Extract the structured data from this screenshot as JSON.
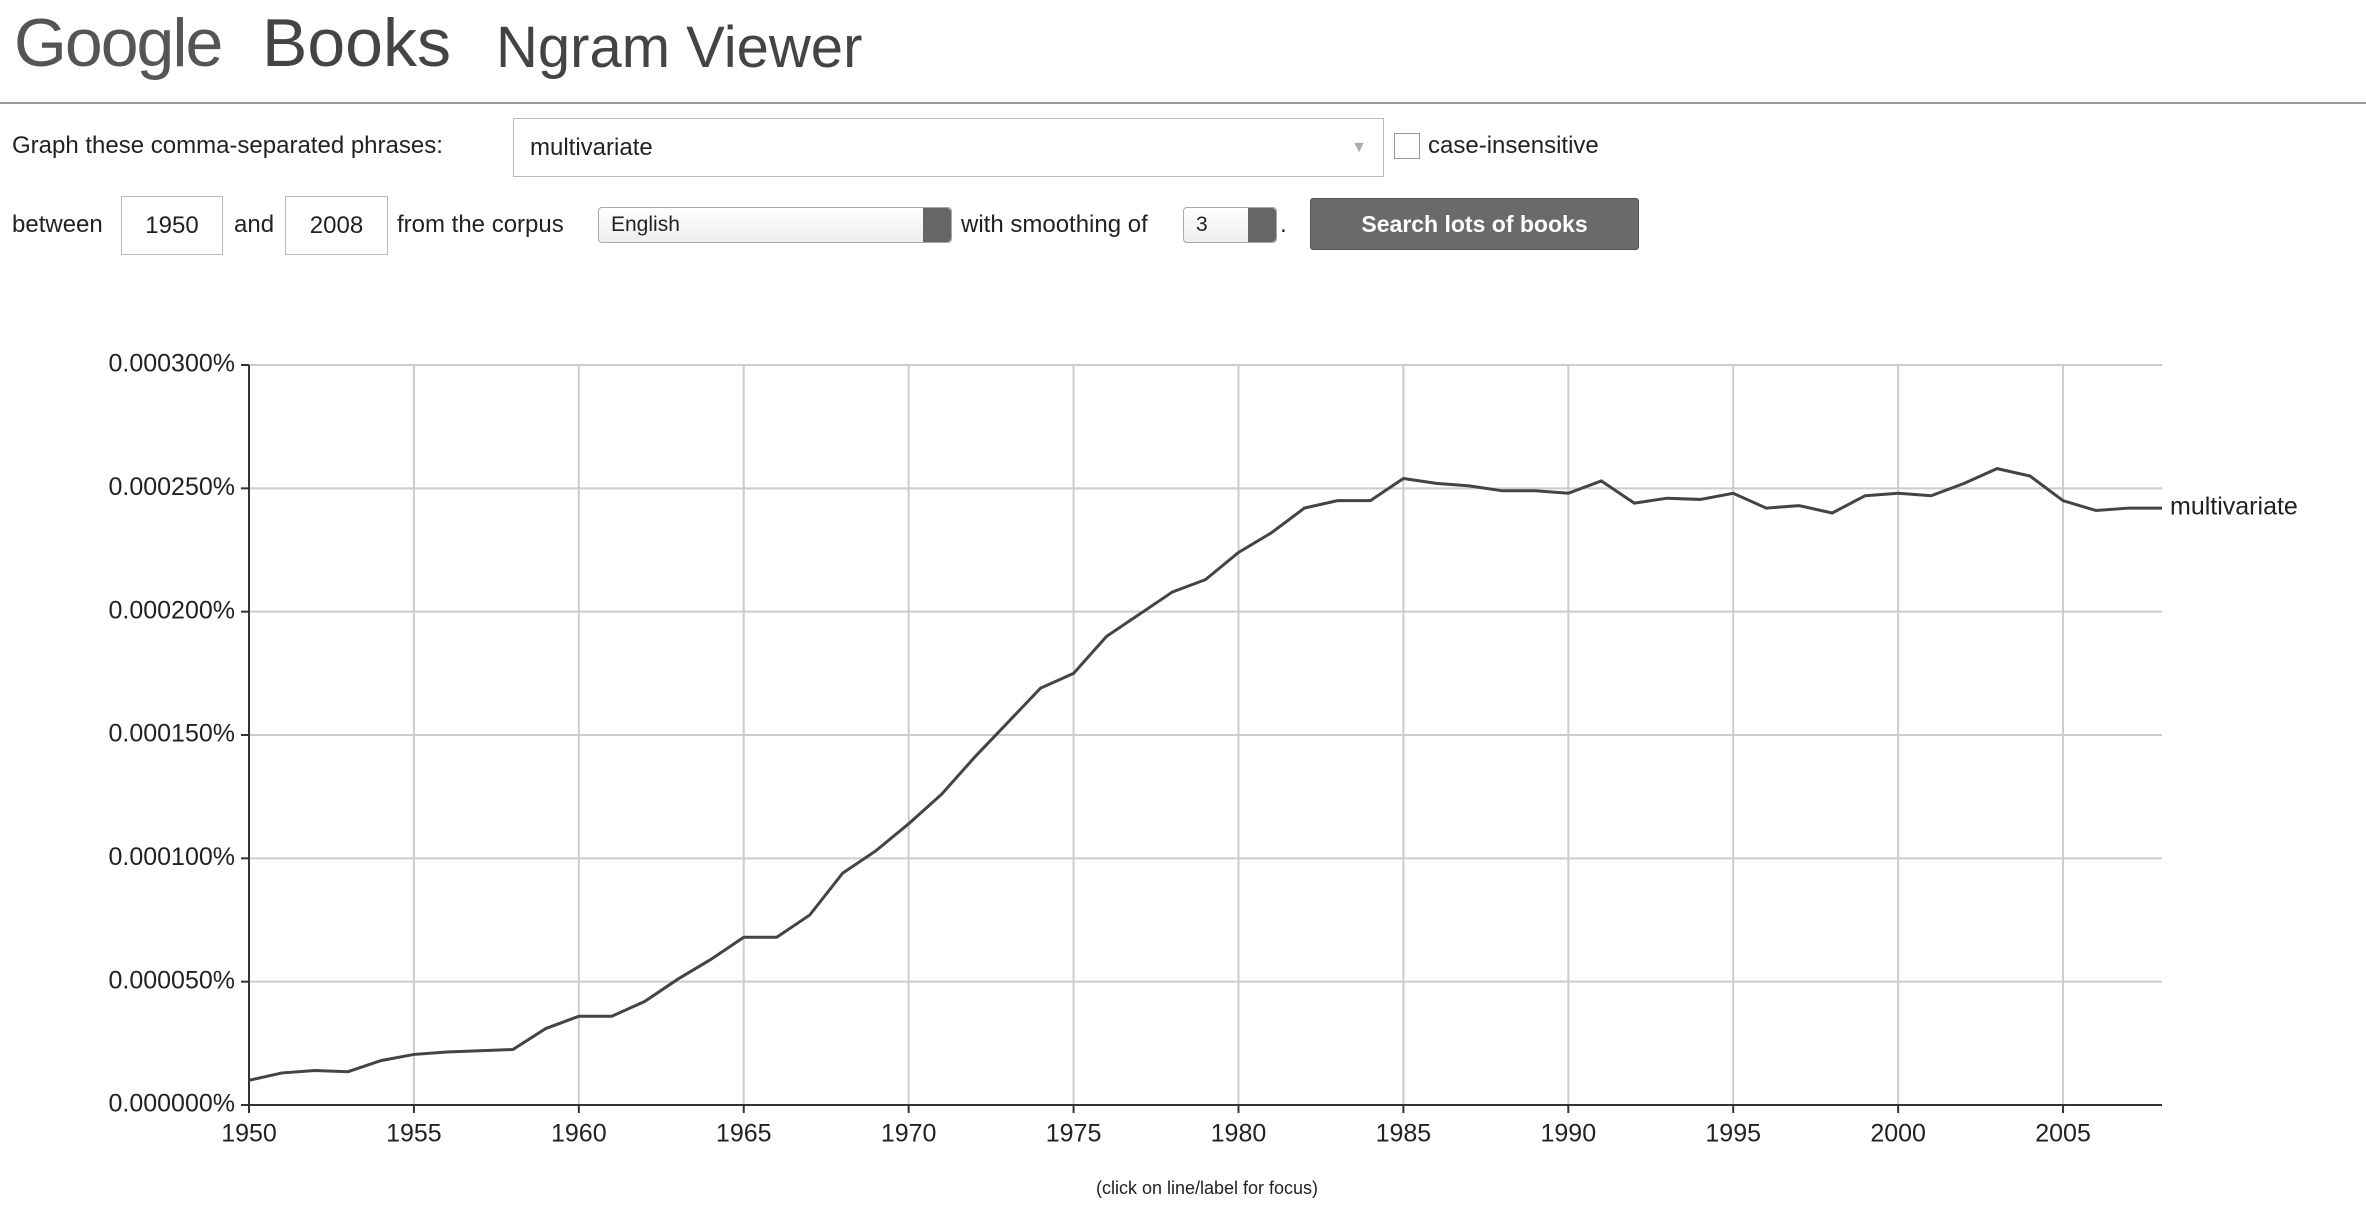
{
  "header": {
    "logo": "Google",
    "product": "Books",
    "title": "Ngram Viewer"
  },
  "form": {
    "phrases_label": "Graph these comma-separated phrases:",
    "phrases": "multivariate",
    "case_label": "case-insensitive",
    "between_label": "between",
    "start_year": "1950",
    "and_label": "and",
    "end_year": "2008",
    "corpus_label": "from the corpus",
    "corpus": "English",
    "smoothing_label": "with smoothing of",
    "smoothing": "3",
    "period": ".",
    "button": "Search lots of books"
  },
  "chart_data": {
    "type": "line",
    "x": [
      1950,
      1951,
      1952,
      1953,
      1954,
      1955,
      1956,
      1957,
      1958,
      1959,
      1960,
      1961,
      1962,
      1963,
      1964,
      1965,
      1966,
      1967,
      1968,
      1969,
      1970,
      1971,
      1972,
      1973,
      1974,
      1975,
      1976,
      1977,
      1978,
      1979,
      1980,
      1981,
      1982,
      1983,
      1984,
      1985,
      1986,
      1987,
      1988,
      1989,
      1990,
      1991,
      1992,
      1993,
      1994,
      1995,
      1996,
      1997,
      1998,
      1999,
      2000,
      2001,
      2002,
      2003,
      2004,
      2005,
      2006,
      2007,
      2008
    ],
    "series": [
      {
        "name": "multivariate",
        "color": "#444444",
        "values": [
          1e-05,
          1.3e-05,
          1.4e-05,
          1.35e-05,
          1.8e-05,
          2.05e-05,
          2.15e-05,
          2.2e-05,
          2.25e-05,
          3.1e-05,
          3.6e-05,
          3.6e-05,
          4.2e-05,
          5.1e-05,
          5.9e-05,
          6.8e-05,
          6.8e-05,
          7.7e-05,
          9.4e-05,
          0.000103,
          0.000114,
          0.000126,
          0.000141,
          0.000155,
          0.000169,
          0.000175,
          0.00019,
          0.000199,
          0.000208,
          0.000213,
          0.000224,
          0.000232,
          0.000242,
          0.000245,
          0.000245,
          0.000254,
          0.000252,
          0.000251,
          0.000249,
          0.000249,
          0.000248,
          0.000253,
          0.000244,
          0.000246,
          0.0002455,
          0.000248,
          0.000242,
          0.000243,
          0.00024,
          0.000247,
          0.000248,
          0.000247,
          0.000252,
          0.000258,
          0.000255,
          0.000245,
          0.000241,
          0.000242,
          0.000242
        ]
      }
    ],
    "xlim": [
      1950,
      2008
    ],
    "xticks": [
      1950,
      1955,
      1960,
      1965,
      1970,
      1975,
      1980,
      1985,
      1990,
      1995,
      2000,
      2005
    ],
    "ylim": [
      0,
      0.0003
    ],
    "yticks": [
      {
        "value": 0,
        "label": "0.000000%"
      },
      {
        "value": 5e-05,
        "label": "0.000050%"
      },
      {
        "value": 0.0001,
        "label": "0.000100%"
      },
      {
        "value": 0.00015,
        "label": "0.000150%"
      },
      {
        "value": 0.0002,
        "label": "0.000200%"
      },
      {
        "value": 0.00025,
        "label": "0.000250%"
      },
      {
        "value": 0.0003,
        "label": "0.000300%"
      }
    ],
    "grid": true,
    "note": "(click on line/label for focus)"
  }
}
